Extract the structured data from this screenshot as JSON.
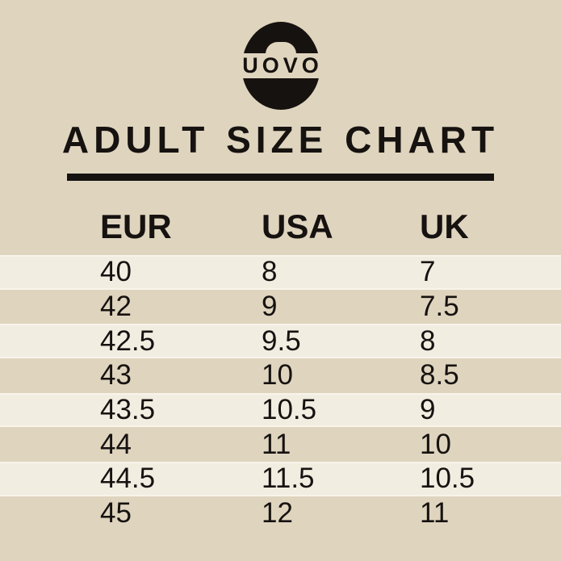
{
  "colors": {
    "background": "#DFD4BE",
    "stripe": "#F2EDE1",
    "stripe_edge": "#F8F4EA",
    "ink": "#161210"
  },
  "logo": {
    "brand": "UOVO"
  },
  "title": "ADULT SIZE CHART",
  "chart_data": {
    "type": "table",
    "title": "ADULT SIZE CHART",
    "columns": [
      "EUR",
      "USA",
      "UK"
    ],
    "rows": [
      [
        "40",
        "8",
        "7"
      ],
      [
        "42",
        "9",
        "7.5"
      ],
      [
        "42.5",
        "9.5",
        "8"
      ],
      [
        "43",
        "10",
        "8.5"
      ],
      [
        "43.5",
        "10.5",
        "9"
      ],
      [
        "44",
        "11",
        "10"
      ],
      [
        "44.5",
        "11.5",
        "10.5"
      ],
      [
        "45",
        "12",
        "11"
      ]
    ],
    "layout": {
      "stripe_pattern": "odd rows light cream, even rows page-background tan",
      "columns_alignment": "left"
    }
  }
}
